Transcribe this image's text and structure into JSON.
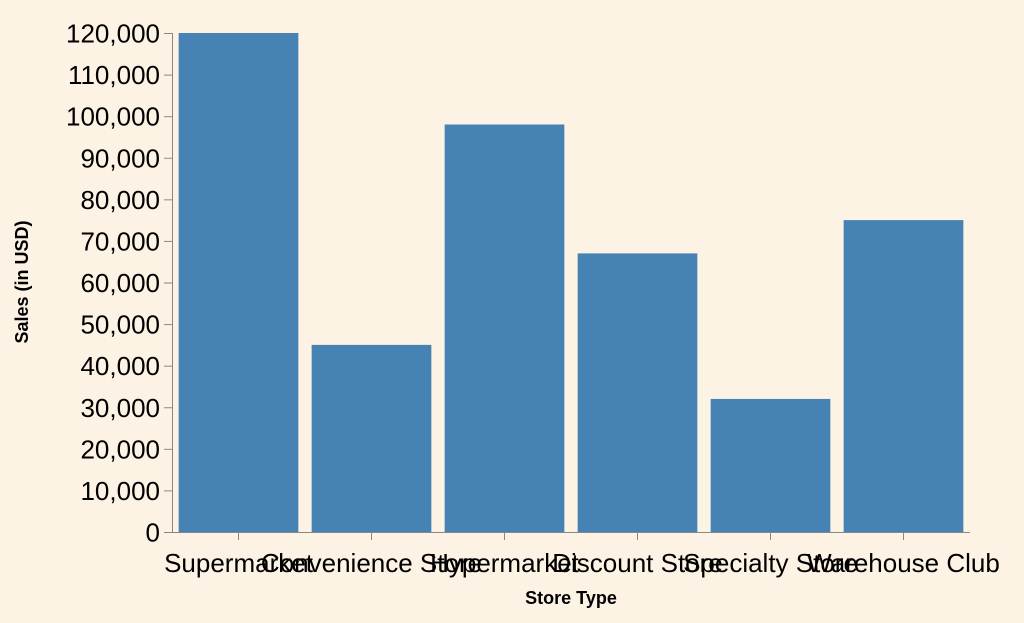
{
  "colors": {
    "background": "#fdf3e5",
    "bar": "#4682b4",
    "axis": "#888888",
    "text": "#000000"
  },
  "chart_data": {
    "type": "bar",
    "title": "",
    "xlabel": "Store Type",
    "ylabel": "Sales (in USD)",
    "categories": [
      "Supermarket",
      "Convenience Store",
      "Hypermarket",
      "Discount Store",
      "Specialty Store",
      "Warehouse Club"
    ],
    "values": [
      120000,
      45000,
      98000,
      67000,
      32000,
      75000
    ],
    "ylim": [
      0,
      120000
    ],
    "yticks": [
      0,
      10000,
      20000,
      30000,
      40000,
      50000,
      60000,
      70000,
      80000,
      90000,
      100000,
      110000,
      120000
    ],
    "ytick_labels": [
      "0",
      "10,000",
      "20,000",
      "30,000",
      "40,000",
      "50,000",
      "60,000",
      "70,000",
      "80,000",
      "90,000",
      "100,000",
      "110,000",
      "120,000"
    ],
    "grid": false,
    "legend": "none"
  }
}
